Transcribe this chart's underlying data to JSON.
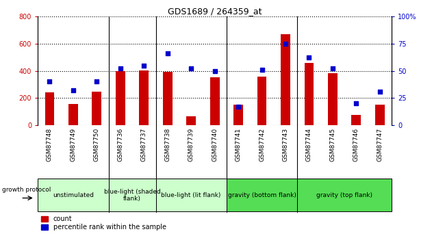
{
  "title": "GDS1689 / 264359_at",
  "samples": [
    "GSM87748",
    "GSM87749",
    "GSM87750",
    "GSM87736",
    "GSM87737",
    "GSM87738",
    "GSM87739",
    "GSM87740",
    "GSM87741",
    "GSM87742",
    "GSM87743",
    "GSM87744",
    "GSM87745",
    "GSM87746",
    "GSM87747"
  ],
  "counts": [
    240,
    155,
    245,
    400,
    405,
    390,
    65,
    350,
    150,
    355,
    670,
    460,
    380,
    75,
    150
  ],
  "percentiles": [
    40,
    32,
    40,
    52,
    55,
    66,
    52,
    50,
    17,
    51,
    75,
    62,
    52,
    20,
    31
  ],
  "groups": [
    {
      "label": "unstimulated",
      "start": 0,
      "end": 3,
      "color": "#ccffcc"
    },
    {
      "label": "blue-light (shaded\nflank)",
      "start": 3,
      "end": 5,
      "color": "#ccffcc"
    },
    {
      "label": "blue-light (lit flank)",
      "start": 5,
      "end": 8,
      "color": "#ccffcc"
    },
    {
      "label": "gravity (bottom flank)",
      "start": 8,
      "end": 11,
      "color": "#55dd55"
    },
    {
      "label": "gravity (top flank)",
      "start": 11,
      "end": 15,
      "color": "#55dd55"
    }
  ],
  "group_boundaries": [
    0,
    3,
    5,
    8,
    11,
    15
  ],
  "ylim_left": [
    0,
    800
  ],
  "ylim_right": [
    0,
    100
  ],
  "yticks_left": [
    0,
    200,
    400,
    600,
    800
  ],
  "yticks_right": [
    0,
    25,
    50,
    75,
    100
  ],
  "bar_color": "#cc0000",
  "dot_color": "#0000cc",
  "tick_bg": "#c8c8c8",
  "plot_bg": "#ffffff"
}
